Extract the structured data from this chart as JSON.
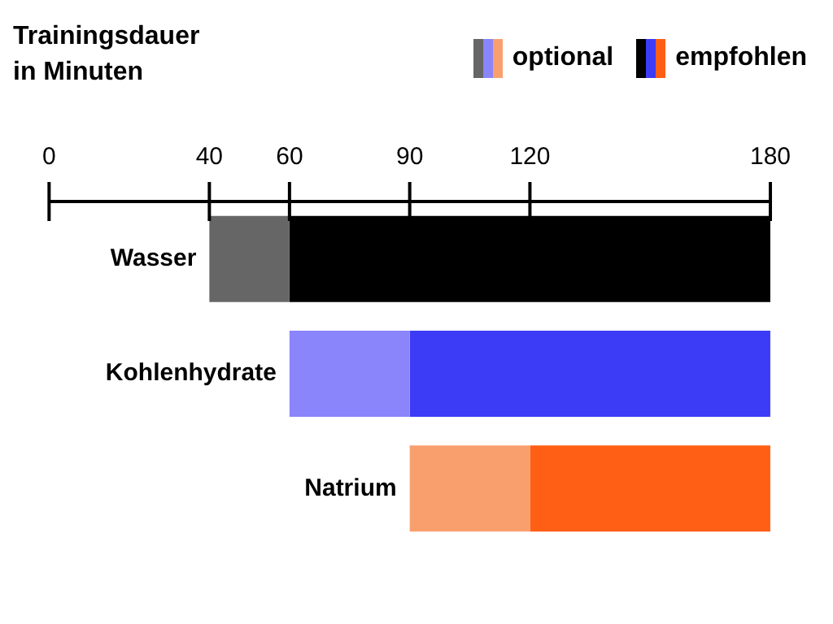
{
  "chart_data": {
    "type": "bar",
    "orientation": "horizontal",
    "xlabel": "Trainingsdauer in Minuten",
    "categories": [
      "Wasser",
      "Kohlenhydrate",
      "Natrium"
    ],
    "series": [
      {
        "name": "optional",
        "colors": [
          "#666666",
          "#8a85fb",
          "#f99f6e"
        ],
        "base": [
          40,
          60,
          90
        ],
        "values": [
          20,
          30,
          30
        ]
      },
      {
        "name": "empfohlen",
        "colors": [
          "#000000",
          "#3c3cf7",
          "#ff5f15"
        ],
        "base": [
          60,
          90,
          120
        ],
        "values": [
          120,
          90,
          60
        ]
      }
    ],
    "xlim": [
      0,
      180
    ],
    "xticks": [
      0,
      40,
      60,
      90,
      120,
      180
    ],
    "legend": "top right"
  }
}
